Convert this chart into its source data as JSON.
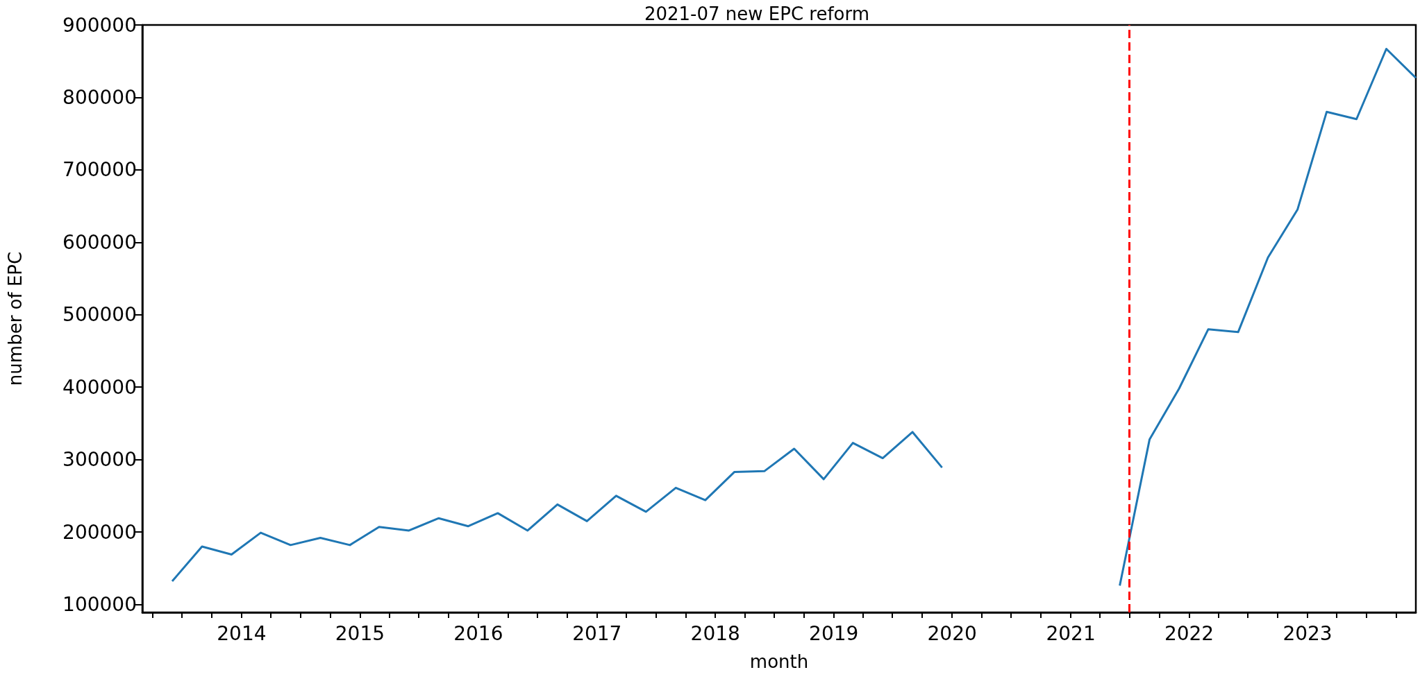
{
  "chart_data": {
    "type": "line",
    "title": "2021-07 new EPC reform",
    "xlabel": "month",
    "ylabel": "number of EPC",
    "x": [
      "2013-06",
      "2013-09",
      "2013-12",
      "2014-03",
      "2014-06",
      "2014-09",
      "2014-12",
      "2015-03",
      "2015-06",
      "2015-09",
      "2015-12",
      "2016-03",
      "2016-06",
      "2016-09",
      "2016-12",
      "2017-03",
      "2017-06",
      "2017-09",
      "2017-12",
      "2018-03",
      "2018-06",
      "2018-09",
      "2018-12",
      "2019-03",
      "2019-06",
      "2019-09",
      "2019-12",
      "2020-03",
      "2020-06",
      "2020-09",
      "2020-12",
      "2021-03",
      "2021-06",
      "2021-09",
      "2021-12",
      "2022-03",
      "2022-06",
      "2022-09",
      "2022-12",
      "2023-03",
      "2023-06",
      "2023-09",
      "2023-12"
    ],
    "series": [
      {
        "color": "#1f77b4",
        "values": [
          132000,
          180000,
          169000,
          199000,
          182000,
          192000,
          182000,
          207000,
          202000,
          219000,
          208000,
          226000,
          202000,
          238000,
          215000,
          250000,
          228000,
          261000,
          244000,
          283000,
          284000,
          315000,
          273000,
          323000,
          302000,
          338000,
          289000,
          null,
          null,
          null,
          null,
          null,
          126000,
          328000,
          398000,
          480000,
          476000,
          579000,
          645000,
          780000,
          770000,
          867000,
          827000
        ]
      }
    ],
    "xlim": [
      "2013-03",
      "2023-12"
    ],
    "ylim": [
      89000,
      900000
    ],
    "xticks": [
      {
        "value": "2013-04",
        "label": null
      },
      {
        "value": "2013-07",
        "label": null
      },
      {
        "value": "2013-10",
        "label": null
      },
      "2014",
      {
        "value": "2014-04",
        "label": null
      },
      {
        "value": "2014-07",
        "label": null
      },
      {
        "value": "2014-10",
        "label": null
      },
      "2015",
      {
        "value": "2015-04",
        "label": null
      },
      {
        "value": "2015-07",
        "label": null
      },
      {
        "value": "2015-10",
        "label": null
      },
      "2016",
      {
        "value": "2016-04",
        "label": null
      },
      {
        "value": "2016-07",
        "label": null
      },
      {
        "value": "2016-10",
        "label": null
      },
      "2017",
      {
        "value": "2017-04",
        "label": null
      },
      {
        "value": "2017-07",
        "label": null
      },
      {
        "value": "2017-10",
        "label": null
      },
      "2018",
      {
        "value": "2018-04",
        "label": null
      },
      {
        "value": "2018-07",
        "label": null
      },
      {
        "value": "2018-10",
        "label": null
      },
      "2019",
      {
        "value": "2019-04",
        "label": null
      },
      {
        "value": "2019-07",
        "label": null
      },
      {
        "value": "2019-10",
        "label": null
      },
      "2020",
      {
        "value": "2020-04",
        "label": null
      },
      {
        "value": "2020-07",
        "label": null
      },
      {
        "value": "2020-10",
        "label": null
      },
      "2021",
      {
        "value": "2021-04",
        "label": null
      },
      {
        "value": "2021-07",
        "label": null
      },
      {
        "value": "2021-10",
        "label": null
      },
      "2022",
      {
        "value": "2022-04",
        "label": null
      },
      {
        "value": "2022-07",
        "label": null
      },
      {
        "value": "2022-10",
        "label": null
      },
      "2023",
      {
        "value": "2023-04",
        "label": null
      },
      {
        "value": "2023-07",
        "label": null
      },
      {
        "value": "2023-10",
        "label": null
      }
    ],
    "yticks": [
      100000,
      200000,
      300000,
      400000,
      500000,
      600000,
      700000,
      800000,
      900000
    ],
    "ref_lines": [
      {
        "axis": "x",
        "value": "2021-07",
        "color": "#ff0000",
        "line_style": "dashed"
      }
    ],
    "grid": false
  }
}
